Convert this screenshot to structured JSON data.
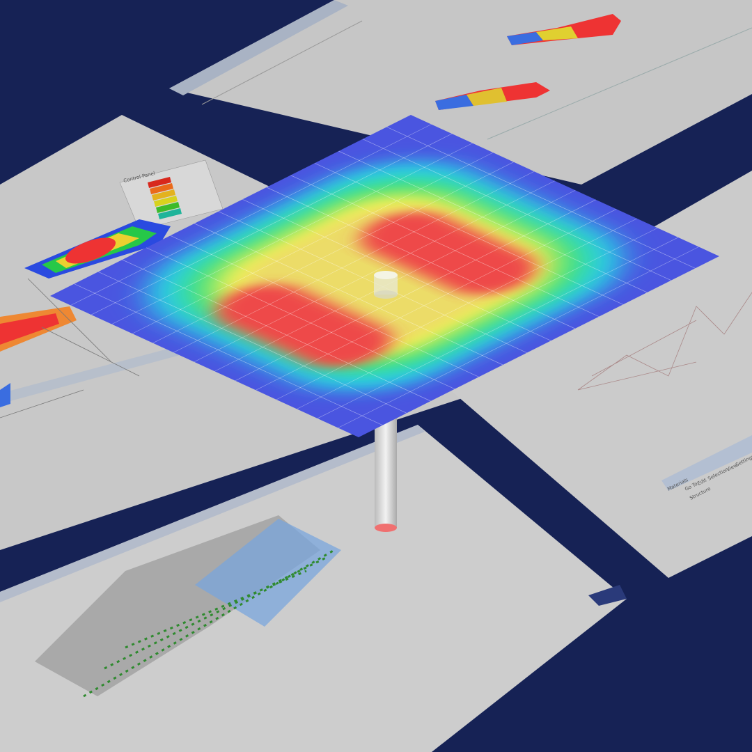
{
  "background_color": "#162255",
  "right_panel": {
    "tabs": [
      "Materials"
    ],
    "menu": [
      "Go To",
      "Edit",
      "Selection",
      "View",
      "Settings"
    ],
    "tree_root": "Structure"
  },
  "left_panel": {
    "control_panel_title": "Control Panel"
  },
  "heatmap": {
    "colors": {
      "min": "#4a55e0",
      "low": "#2ad0e8",
      "mid": "#39e07a",
      "high": "#f2f055",
      "max": "#ee4a4a"
    }
  },
  "legend_colors": [
    "#d8281c",
    "#ea6a1a",
    "#e3b21e",
    "#d7d21e",
    "#3cbb2a",
    "#1fb49a"
  ]
}
